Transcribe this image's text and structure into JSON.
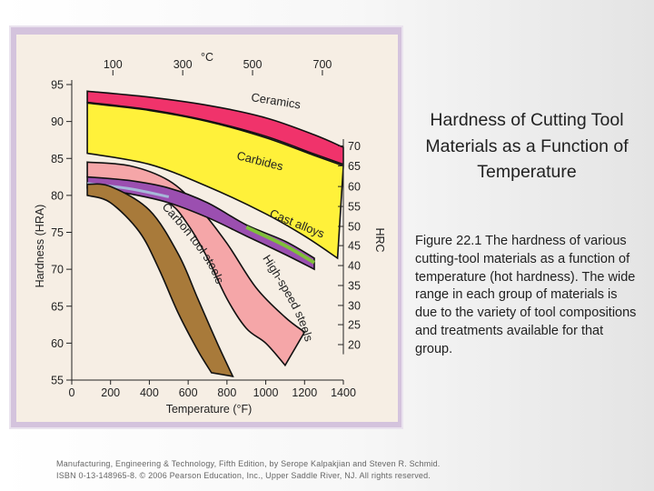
{
  "slide": {
    "title": "Hardness of Cutting Tool Materials as a Function of Temperature",
    "caption": "Figure 22.1  The hardness of various cutting-tool materials as a function of temperature (hot hardness).  The wide range in each group of materials is due to the variety of tool compositions and treatments available for that group.",
    "footer_line1": "Manufacturing, Engineering & Technology, Fifth Edition, by Serope Kalpakjian and Steven R. Schmid.",
    "footer_line2": "ISBN 0-13-148965-8. © 2006 Pearson Education, Inc., Upper Saddle River, NJ.  All rights reserved."
  },
  "colors": {
    "panel_bg": "#f6eee4",
    "frame": "#d4c3dd",
    "ceramics": "#f0336b",
    "carbides": "#fff13a",
    "cast_alloys": "#9b4fb0",
    "cast_alloys_green": "#7fbf3a",
    "cast_alloys_blue": "#a6b8d8",
    "hss": "#f5a6a8",
    "carbon": "#a87a3a",
    "curve_line": "#111111"
  },
  "chart_data": {
    "type": "area",
    "title": "",
    "xlabel": "Temperature (°F)",
    "ylabel": "Hardness (HRA)",
    "secondary_ylabel": "HRC",
    "top_axis_label": "°C",
    "xlim": [
      0,
      1400
    ],
    "ylim": [
      55,
      95
    ],
    "x_ticks": [
      "0",
      "200",
      "400",
      "600",
      "800",
      "1000",
      "1200",
      "1400"
    ],
    "y_ticks": [
      "55",
      "60",
      "65",
      "70",
      "75",
      "80",
      "85",
      "90",
      "95"
    ],
    "top_ticks": [
      {
        "label": "100",
        "value_f": 212
      },
      {
        "label": "300",
        "value_f": 572
      },
      {
        "label": "500",
        "value_f": 932
      },
      {
        "label": "700",
        "value_f": 1292
      }
    ],
    "hrc_ticks": [
      {
        "label": "70",
        "value_hra": 86.7
      },
      {
        "label": "65",
        "value_hra": 84.0
      },
      {
        "label": "60",
        "value_hra": 81.2
      },
      {
        "label": "55",
        "value_hra": 78.5
      },
      {
        "label": "50",
        "value_hra": 75.8
      },
      {
        "label": "45",
        "value_hra": 73.2
      },
      {
        "label": "40",
        "value_hra": 70.5
      },
      {
        "label": "35",
        "value_hra": 67.8
      },
      {
        "label": "30",
        "value_hra": 65.1
      },
      {
        "label": "25",
        "value_hra": 62.5
      },
      {
        "label": "20",
        "value_hra": 59.8
      }
    ],
    "series": [
      {
        "name": "Ceramics",
        "key": "ceramics",
        "upper": [
          [
            80,
            94.1
          ],
          [
            400,
            93.3
          ],
          [
            700,
            92.2
          ],
          [
            1000,
            90.5
          ],
          [
            1250,
            88.2
          ],
          [
            1400,
            86.5
          ]
        ],
        "lower": [
          [
            80,
            92.6
          ],
          [
            400,
            91.6
          ],
          [
            700,
            90.1
          ],
          [
            1000,
            88.0
          ],
          [
            1250,
            85.6
          ],
          [
            1400,
            84.2
          ]
        ]
      },
      {
        "name": "Carbides",
        "key": "carbides",
        "upper": [
          [
            80,
            92.5
          ],
          [
            400,
            91.5
          ],
          [
            700,
            90.0
          ],
          [
            1000,
            87.8
          ],
          [
            1250,
            85.4
          ],
          [
            1400,
            84.0
          ]
        ],
        "lower": [
          [
            80,
            85.7
          ],
          [
            400,
            84.2
          ],
          [
            700,
            81.2
          ],
          [
            1000,
            77.5
          ],
          [
            1200,
            74.5
          ],
          [
            1370,
            71.5
          ]
        ]
      },
      {
        "name": "Cast alloys",
        "key": "cast_alloys",
        "upper": [
          [
            80,
            82.5
          ],
          [
            300,
            82.0
          ],
          [
            500,
            81.0
          ],
          [
            700,
            79.0
          ],
          [
            900,
            76.0
          ],
          [
            1100,
            73.8
          ],
          [
            1250,
            71.5
          ]
        ],
        "lower": [
          [
            80,
            81.0
          ],
          [
            300,
            80.2
          ],
          [
            500,
            79.0
          ],
          [
            700,
            77.0
          ],
          [
            900,
            74.5
          ],
          [
            1100,
            72.0
          ],
          [
            1250,
            70.0
          ]
        ]
      },
      {
        "name": "High-speed steels",
        "key": "hss",
        "upper": [
          [
            80,
            84.5
          ],
          [
            300,
            84.0
          ],
          [
            500,
            82.0
          ],
          [
            650,
            78.5
          ],
          [
            800,
            73.5
          ],
          [
            950,
            67.5
          ],
          [
            1100,
            63.5
          ],
          [
            1200,
            61.5
          ]
        ],
        "lower": [
          [
            80,
            82.5
          ],
          [
            300,
            81.5
          ],
          [
            500,
            79.0
          ],
          [
            600,
            76.0
          ],
          [
            700,
            71.5
          ],
          [
            800,
            66.0
          ],
          [
            900,
            62.0
          ],
          [
            1000,
            60.0
          ],
          [
            1100,
            57.0
          ]
        ]
      },
      {
        "name": "Carbon tool steels",
        "key": "carbon",
        "upper": [
          [
            80,
            81.5
          ],
          [
            200,
            81.2
          ],
          [
            400,
            78.0
          ],
          [
            550,
            72.0
          ],
          [
            650,
            66.0
          ],
          [
            750,
            60.0
          ],
          [
            830,
            55.5
          ]
        ],
        "lower": [
          [
            80,
            80.0
          ],
          [
            200,
            79.0
          ],
          [
            350,
            75.0
          ],
          [
            450,
            70.0
          ],
          [
            550,
            64.0
          ],
          [
            650,
            59.0
          ],
          [
            720,
            56.0
          ]
        ]
      }
    ],
    "curve_labels": [
      {
        "text": "Ceramics",
        "key": "lbl_ceramics"
      },
      {
        "text": "Carbides",
        "key": "lbl_carbides"
      },
      {
        "text": "Cast alloys",
        "key": "lbl_cast"
      },
      {
        "text": "Carbon tool steels",
        "key": "lbl_carbon"
      },
      {
        "text": "High-speed steels",
        "key": "lbl_hss"
      }
    ]
  }
}
